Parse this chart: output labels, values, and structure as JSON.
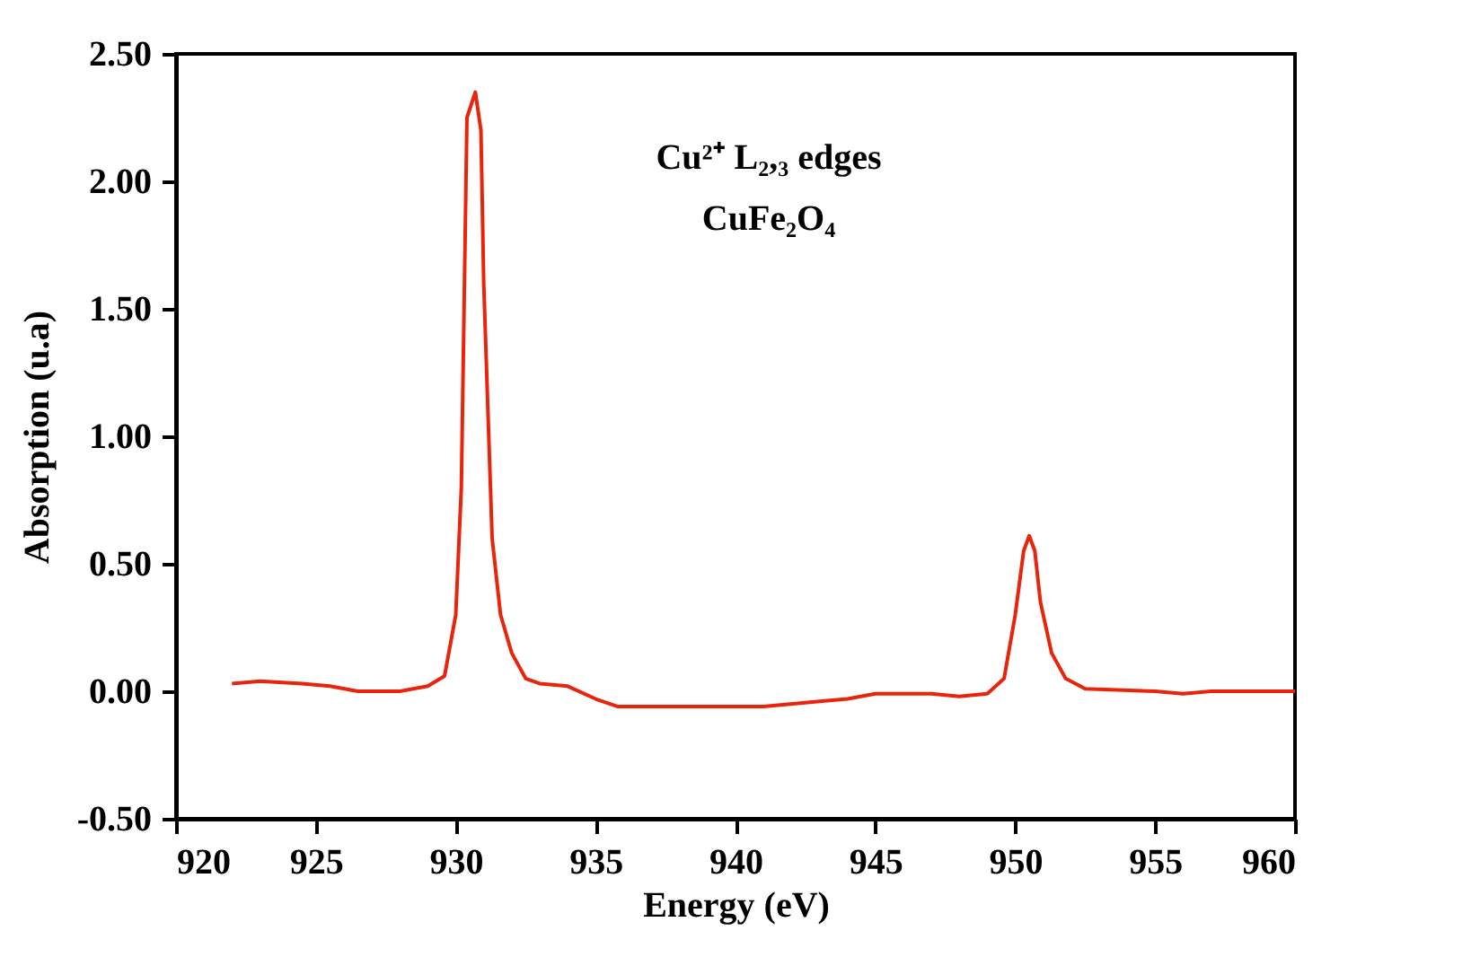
{
  "chart_data": {
    "type": "line",
    "xlabel": "Energy  (eV)",
    "ylabel": "Absorption  (u.a)",
    "annotations": [
      "Cu²⁺ L₂,₃ edges",
      "CuFe₂O₄"
    ],
    "x": [
      922.0,
      923.0,
      924.5,
      925.5,
      926.5,
      928.0,
      929.0,
      929.6,
      930.0,
      930.2,
      930.4,
      930.7,
      930.9,
      931.0,
      931.3,
      931.6,
      932.0,
      932.5,
      933.0,
      934.0,
      935.0,
      935.8,
      940.0,
      941.0,
      943.0,
      944.0,
      945.0,
      947.0,
      948.0,
      949.0,
      949.6,
      950.0,
      950.3,
      950.5,
      950.7,
      950.9,
      951.3,
      951.8,
      952.5,
      955.0,
      956.0,
      957.0,
      960.0
    ],
    "series": [
      {
        "color": "#e8250c",
        "values": [
          0.03,
          0.04,
          0.03,
          0.02,
          0.0,
          0.0,
          0.02,
          0.06,
          0.3,
          0.8,
          2.25,
          2.35,
          2.2,
          1.6,
          0.6,
          0.3,
          0.15,
          0.05,
          0.03,
          0.02,
          -0.03,
          -0.06,
          -0.06,
          -0.06,
          -0.04,
          -0.03,
          -0.01,
          -0.01,
          -0.02,
          -0.01,
          0.05,
          0.3,
          0.55,
          0.61,
          0.55,
          0.35,
          0.15,
          0.05,
          0.01,
          0.0,
          -0.01,
          0.0,
          0.0
        ]
      }
    ],
    "xlim": [
      920,
      960
    ],
    "xticks": [
      920,
      925,
      930,
      935,
      940,
      945,
      950,
      955,
      960
    ],
    "ylim": [
      -0.5,
      2.5
    ],
    "yticks": [
      {
        "value": -0.5,
        "label": "-0.50"
      },
      {
        "value": 0,
        "label": "0.00"
      },
      {
        "value": 0.5,
        "label": "0.50"
      },
      {
        "value": 1,
        "label": "1.00"
      },
      {
        "value": 1.5,
        "label": "1.50"
      },
      {
        "value": 2,
        "label": "2.00"
      },
      {
        "value": 2.5,
        "label": "2.50"
      }
    ],
    "grid": false,
    "marker": "none",
    "line_style": "solid"
  }
}
